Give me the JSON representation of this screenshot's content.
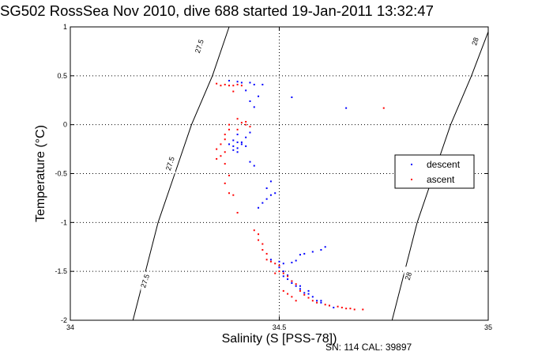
{
  "title": "SG502 RossSea Nov 2010, dive 688 started 19-Jan-2011 13:32:47",
  "footer_note": "SN: 114  CAL: 39897",
  "chart_data": {
    "type": "scatter",
    "xlabel": "Salinity (S [PSS-78])",
    "ylabel": "Temperature (°C)",
    "xlim": [
      34,
      35
    ],
    "ylim": [
      -2,
      1
    ],
    "x_ticks": [
      34,
      34.5,
      35
    ],
    "x_tick_labels": [
      "34",
      "34.5",
      "35"
    ],
    "y_ticks": [
      -2,
      -1.5,
      -1,
      -0.5,
      0,
      0.5,
      1
    ],
    "y_tick_labels": [
      "-2",
      "-1.5",
      "-1",
      "-0.5",
      "0",
      "0.5",
      "1"
    ],
    "grid": true,
    "legend_position": "right",
    "density_contours": [
      {
        "label": "27.5",
        "points": [
          [
            34.15,
            -2.0
          ],
          [
            34.18,
            -1.5
          ],
          [
            34.21,
            -1.0
          ],
          [
            34.25,
            -0.5
          ],
          [
            34.29,
            0.0
          ],
          [
            34.34,
            0.5
          ],
          [
            34.38,
            1.0
          ]
        ]
      },
      {
        "label": "28",
        "points": [
          [
            34.77,
            -2.0
          ],
          [
            34.8,
            -1.5
          ],
          [
            34.83,
            -1.0
          ],
          [
            34.87,
            -0.5
          ],
          [
            34.91,
            0.0
          ],
          [
            34.96,
            0.5
          ],
          [
            35.0,
            0.95
          ]
        ]
      }
    ],
    "contour_labels": [
      {
        "text": "27.5",
        "at": [
          34.31,
          0.8
        ]
      },
      {
        "text": "27.5",
        "at": [
          34.24,
          -0.4
        ]
      },
      {
        "text": "27.5",
        "at": [
          34.18,
          -1.6
        ]
      },
      {
        "text": "28",
        "at": [
          34.97,
          0.85
        ]
      },
      {
        "text": "28",
        "at": [
          34.81,
          -1.55
        ]
      }
    ],
    "series": [
      {
        "name": "descent",
        "color": "#0000ff",
        "points": [
          [
            34.38,
            0.45
          ],
          [
            34.4,
            0.44
          ],
          [
            34.41,
            0.43
          ],
          [
            34.43,
            0.43
          ],
          [
            34.44,
            0.41
          ],
          [
            34.46,
            0.41
          ],
          [
            34.42,
            0.35
          ],
          [
            34.45,
            0.29
          ],
          [
            34.43,
            0.24
          ],
          [
            34.44,
            0.18
          ],
          [
            34.53,
            0.28
          ],
          [
            34.66,
            0.17
          ],
          [
            34.4,
            -0.1
          ],
          [
            34.39,
            -0.16
          ],
          [
            34.4,
            -0.18
          ],
          [
            34.41,
            -0.2
          ],
          [
            34.39,
            -0.22
          ],
          [
            34.4,
            -0.24
          ],
          [
            34.41,
            -0.18
          ],
          [
            34.42,
            -0.13
          ],
          [
            34.43,
            -0.08
          ],
          [
            34.39,
            -0.26
          ],
          [
            34.38,
            -0.2
          ],
          [
            34.42,
            -0.22
          ],
          [
            34.4,
            -0.28
          ],
          [
            34.43,
            -0.38
          ],
          [
            34.44,
            -0.42
          ],
          [
            34.48,
            -0.58
          ],
          [
            34.47,
            -0.65
          ],
          [
            34.48,
            -0.72
          ],
          [
            34.47,
            -0.76
          ],
          [
            34.49,
            -0.7
          ],
          [
            34.46,
            -0.8
          ],
          [
            34.45,
            -0.85
          ],
          [
            34.48,
            -1.38
          ],
          [
            34.5,
            -1.4
          ],
          [
            34.51,
            -1.42
          ],
          [
            34.53,
            -1.41
          ],
          [
            34.54,
            -1.39
          ],
          [
            34.55,
            -1.33
          ],
          [
            34.56,
            -1.32
          ],
          [
            34.58,
            -1.3
          ],
          [
            34.6,
            -1.28
          ],
          [
            34.61,
            -1.25
          ],
          [
            34.5,
            -1.46
          ],
          [
            34.51,
            -1.5
          ],
          [
            34.51,
            -1.55
          ],
          [
            34.52,
            -1.58
          ],
          [
            34.53,
            -1.62
          ],
          [
            34.54,
            -1.65
          ],
          [
            34.55,
            -1.68
          ],
          [
            34.56,
            -1.72
          ],
          [
            34.57,
            -1.73
          ],
          [
            34.58,
            -1.76
          ],
          [
            34.59,
            -1.8
          ],
          [
            34.6,
            -1.82
          ],
          [
            34.62,
            -1.85
          ],
          [
            34.63,
            -1.87
          ],
          [
            34.52,
            -1.54
          ],
          [
            34.53,
            -1.6
          ],
          [
            34.55,
            -1.65
          ],
          [
            34.57,
            -1.7
          ],
          [
            34.6,
            -1.8
          ]
        ]
      },
      {
        "name": "ascent",
        "color": "#ff0000",
        "points": [
          [
            34.35,
            0.42
          ],
          [
            34.37,
            0.41
          ],
          [
            34.38,
            0.4
          ],
          [
            34.39,
            0.4
          ],
          [
            34.4,
            0.41
          ],
          [
            34.41,
            0.4
          ],
          [
            34.36,
            0.4
          ],
          [
            34.75,
            0.17
          ],
          [
            34.39,
            0.34
          ],
          [
            34.4,
            0.06
          ],
          [
            34.41,
            0.02
          ],
          [
            34.42,
            0.0
          ],
          [
            34.43,
            -0.02
          ],
          [
            34.42,
            0.03
          ],
          [
            34.4,
            -0.05
          ],
          [
            34.38,
            0.0
          ],
          [
            34.38,
            -0.05
          ],
          [
            34.37,
            -0.1
          ],
          [
            34.37,
            -0.15
          ],
          [
            34.36,
            -0.2
          ],
          [
            34.37,
            -0.28
          ],
          [
            34.35,
            -0.25
          ],
          [
            34.36,
            -0.32
          ],
          [
            34.35,
            -0.35
          ],
          [
            34.37,
            -0.4
          ],
          [
            34.38,
            -0.52
          ],
          [
            34.37,
            -0.6
          ],
          [
            34.38,
            -0.7
          ],
          [
            34.39,
            -0.72
          ],
          [
            34.4,
            -0.9
          ],
          [
            34.44,
            -1.08
          ],
          [
            34.45,
            -1.12
          ],
          [
            34.45,
            -1.18
          ],
          [
            34.46,
            -1.22
          ],
          [
            34.46,
            -1.28
          ],
          [
            34.47,
            -1.32
          ],
          [
            34.47,
            -1.38
          ],
          [
            34.48,
            -1.4
          ],
          [
            34.49,
            -1.42
          ],
          [
            34.5,
            -1.44
          ],
          [
            34.5,
            -1.5
          ],
          [
            34.49,
            -1.52
          ],
          [
            34.51,
            -1.52
          ],
          [
            34.52,
            -1.55
          ],
          [
            34.53,
            -1.6
          ],
          [
            34.54,
            -1.63
          ],
          [
            34.55,
            -1.7
          ],
          [
            34.56,
            -1.74
          ],
          [
            34.57,
            -1.77
          ],
          [
            34.58,
            -1.8
          ],
          [
            34.59,
            -1.82
          ],
          [
            34.61,
            -1.84
          ],
          [
            34.62,
            -1.85
          ],
          [
            34.64,
            -1.86
          ],
          [
            34.65,
            -1.87
          ],
          [
            34.67,
            -1.88
          ],
          [
            34.66,
            -1.88
          ],
          [
            34.68,
            -1.89
          ],
          [
            34.7,
            -1.89
          ],
          [
            34.51,
            -1.7
          ],
          [
            34.52,
            -1.73
          ],
          [
            34.53,
            -1.76
          ],
          [
            34.54,
            -1.8
          ]
        ]
      }
    ]
  }
}
